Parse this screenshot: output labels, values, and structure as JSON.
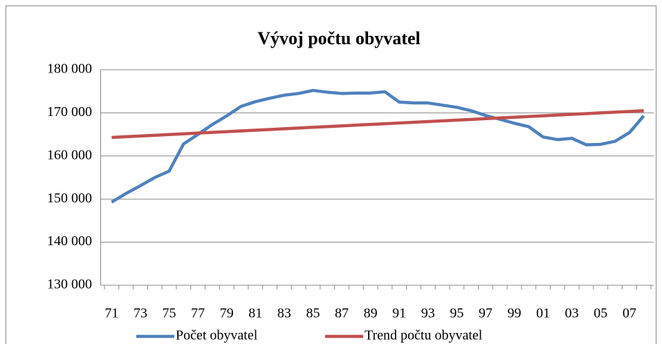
{
  "chart_data": {
    "type": "line",
    "title": "Vývoj počtu obyvatel",
    "categories": [
      "71",
      null,
      "73",
      null,
      "75",
      null,
      "77",
      null,
      "79",
      null,
      "81",
      null,
      "83",
      null,
      "85",
      null,
      "87",
      null,
      "89",
      null,
      "91",
      null,
      "93",
      null,
      "95",
      null,
      "97",
      null,
      "99",
      null,
      "01",
      null,
      "03",
      null,
      "05",
      null,
      "07",
      null
    ],
    "series": [
      {
        "name": "Počet obyvatel",
        "color": "#4f81bd",
        "values": [
          149300,
          151300,
          153100,
          155000,
          156500,
          162800,
          165000,
          167300,
          169300,
          171500,
          172600,
          173400,
          174100,
          174500,
          175200,
          174800,
          174500,
          174600,
          174600,
          174900,
          172500,
          172300,
          172300,
          171800,
          171300,
          170500,
          169400,
          168500,
          167600,
          166800,
          164400,
          163800,
          164100,
          162600,
          162700,
          163400,
          165400,
          169300
        ]
      },
      {
        "name": "Trend počtu obyvatel",
        "color": "#c0504d",
        "values": [
          164300,
          164470,
          164640,
          164800,
          164970,
          165140,
          165310,
          165470,
          165640,
          165810,
          165980,
          166140,
          166310,
          166480,
          166650,
          166810,
          166980,
          167150,
          167320,
          167480,
          167650,
          167820,
          167990,
          168150,
          168320,
          168490,
          168660,
          168830,
          168990,
          169160,
          169330,
          169500,
          169660,
          169830,
          170000,
          170170,
          170330,
          170500
        ]
      }
    ],
    "ylim": [
      130000,
      180000
    ],
    "yticks": [
      {
        "value": 130000,
        "label": "130 000"
      },
      {
        "value": 140000,
        "label": "140 000"
      },
      {
        "value": 150000,
        "label": "150 000"
      },
      {
        "value": 160000,
        "label": "160 000"
      },
      {
        "value": 170000,
        "label": "170 000"
      },
      {
        "value": 180000,
        "label": "180 000"
      }
    ],
    "grid": true,
    "legend": "bottom"
  }
}
